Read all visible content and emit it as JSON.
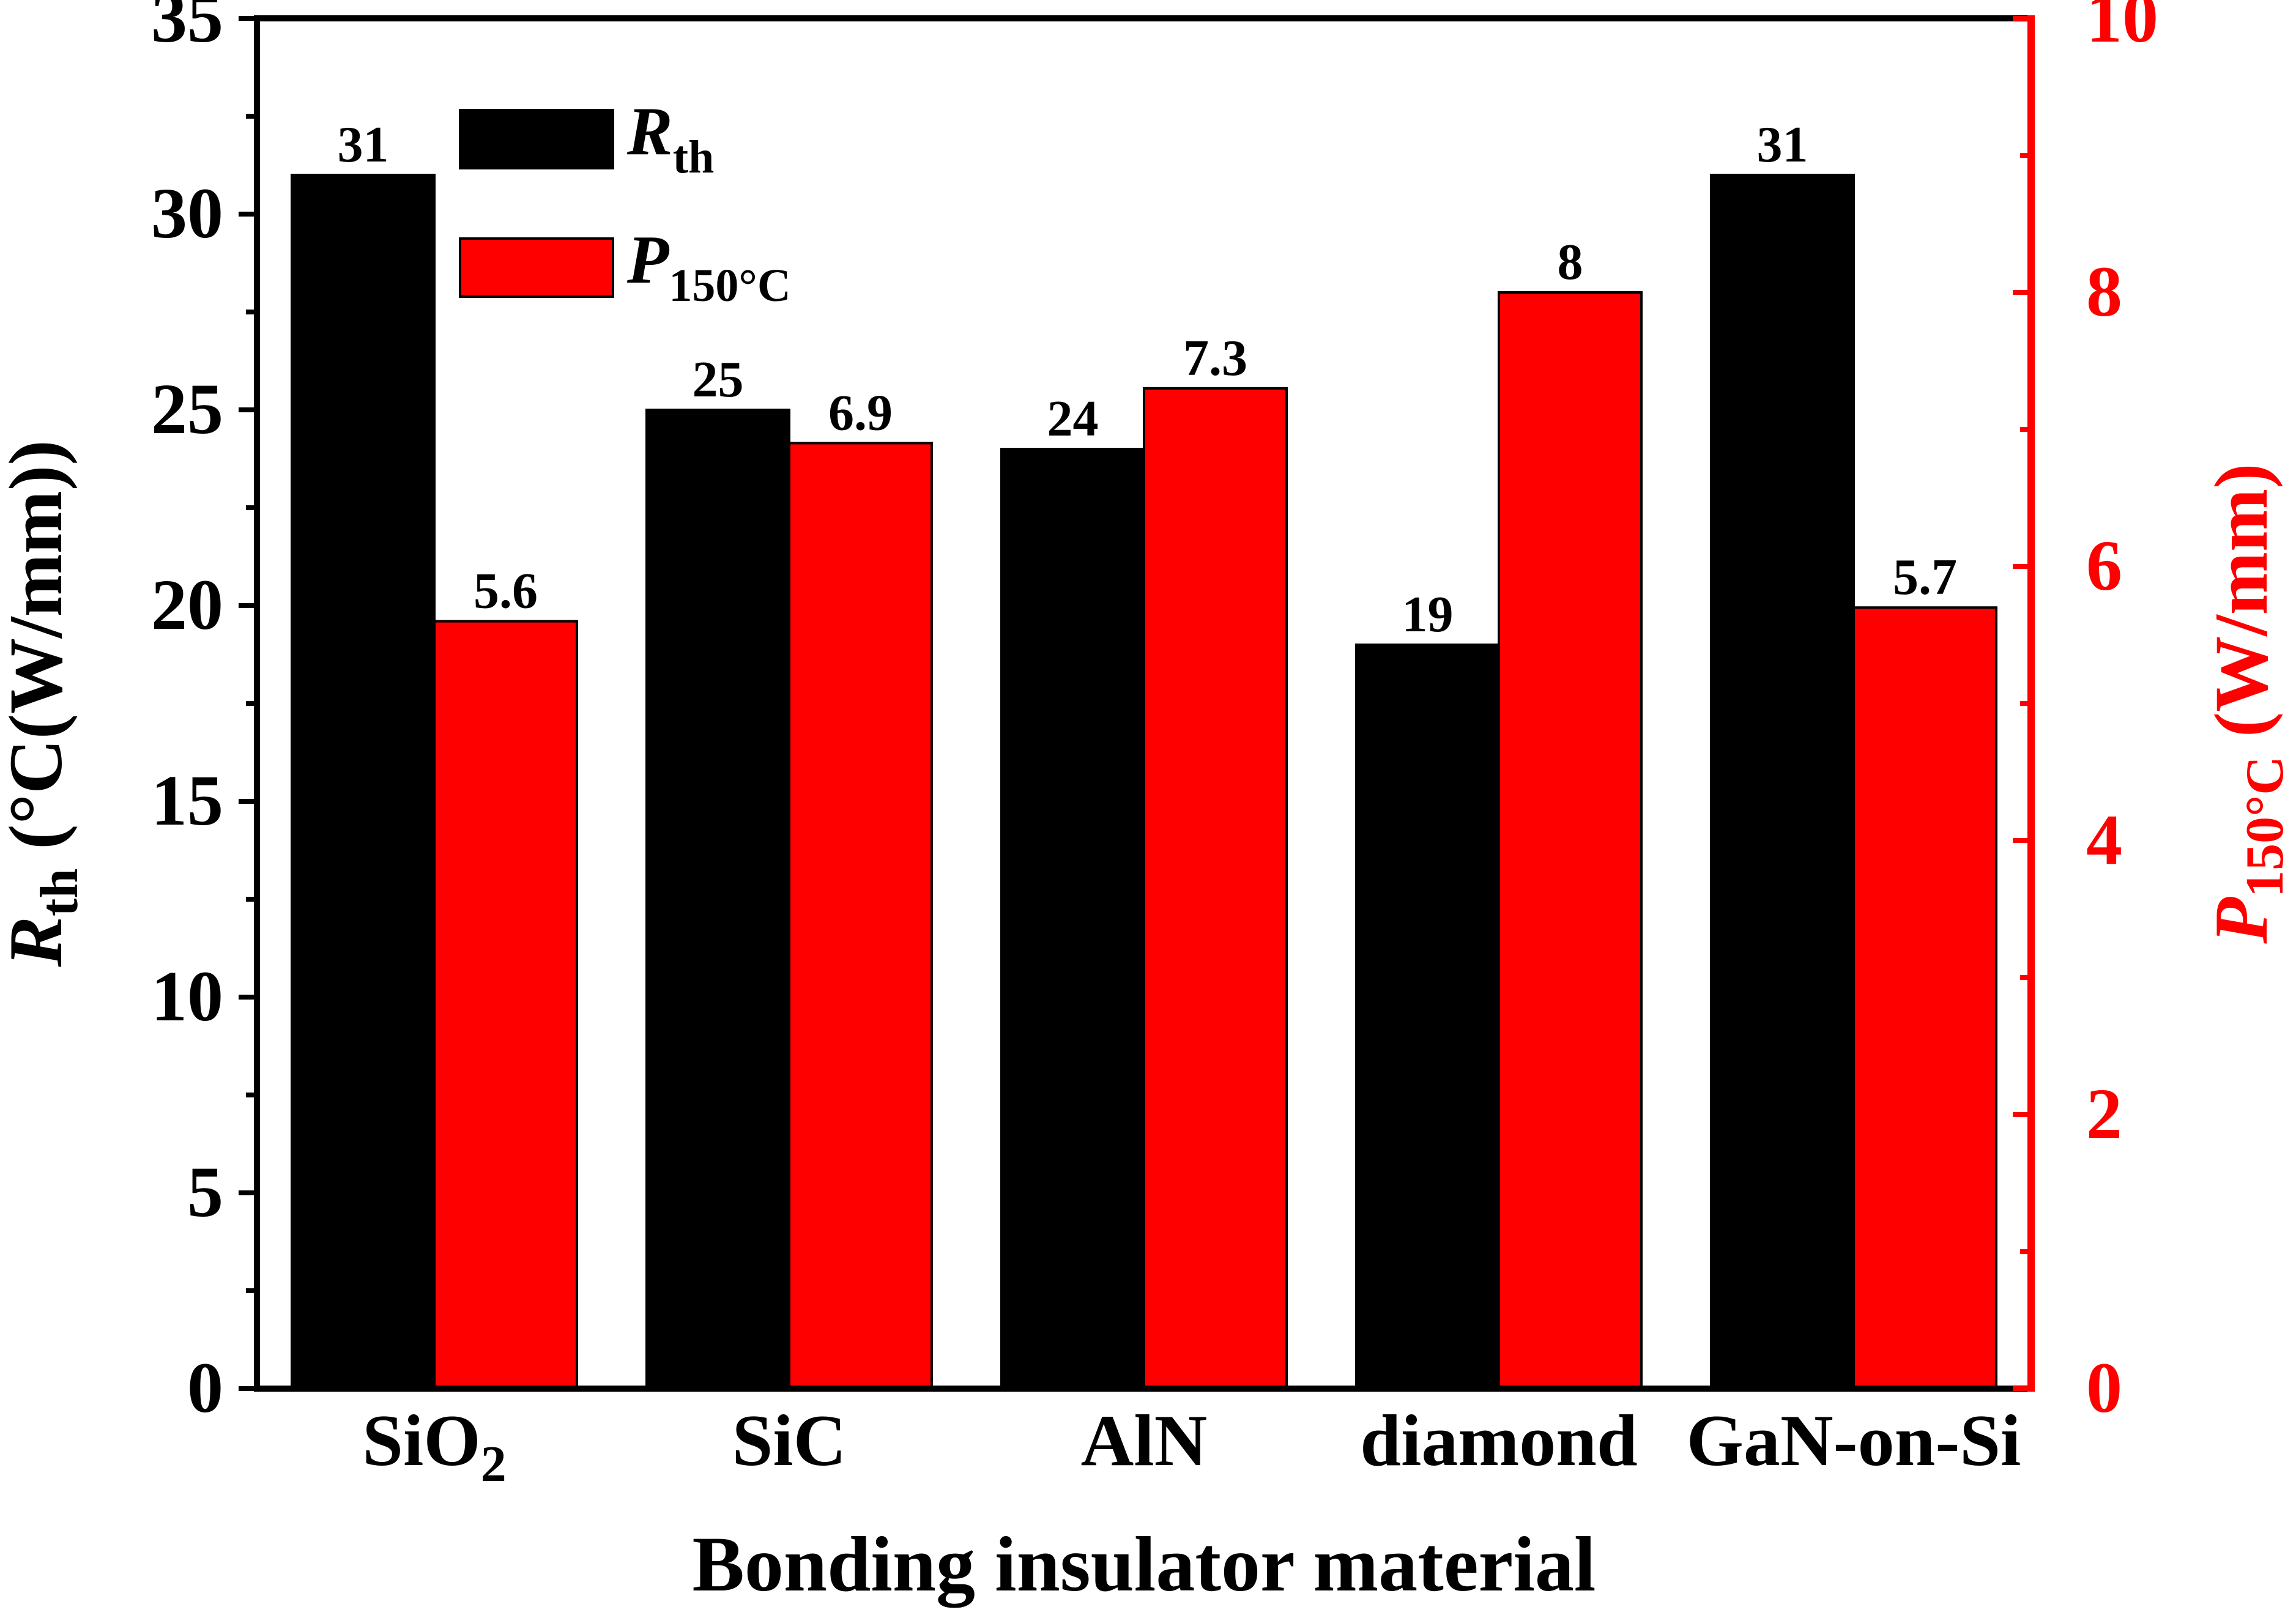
{
  "colors": {
    "rth": "#000000",
    "p150": "#ff0000",
    "axis_left": "#000000",
    "axis_right": "#ff0000"
  },
  "chart_data": {
    "type": "bar",
    "categories": [
      "SiO",
      "SiC",
      "AlN",
      "diamond",
      "GaN-on-Si"
    ],
    "category_subscripts": [
      "2",
      "",
      "",
      "",
      ""
    ],
    "series": [
      {
        "name": "R",
        "name_sub": "th",
        "axis": "left",
        "values": [
          31,
          25,
          24,
          19,
          31
        ],
        "labels": [
          "31",
          "25",
          "24",
          "19",
          "31"
        ]
      },
      {
        "name": "P",
        "name_sub": "150°C",
        "axis": "right",
        "values": [
          5.6,
          6.9,
          7.3,
          8,
          5.7
        ],
        "labels": [
          "5.6",
          "6.9",
          "7.3",
          "8",
          "5.7"
        ]
      }
    ],
    "xlabel": "Bonding insulator material",
    "ylabel_left": {
      "main": "R",
      "sub": "th",
      "rest": " (°C(W/mm))"
    },
    "ylabel_right": {
      "main": "P",
      "sub": "150°C",
      "rest": " (W/mm)"
    },
    "ylim_left": [
      0,
      35
    ],
    "ylim_right": [
      0,
      10
    ],
    "yticks_left": [
      "0",
      "5",
      "10",
      "15",
      "20",
      "25",
      "30",
      "35"
    ],
    "yticks_right": [
      "0",
      "2",
      "4",
      "6",
      "8",
      "10"
    ],
    "legend_position": "top-left",
    "grid": false
  }
}
